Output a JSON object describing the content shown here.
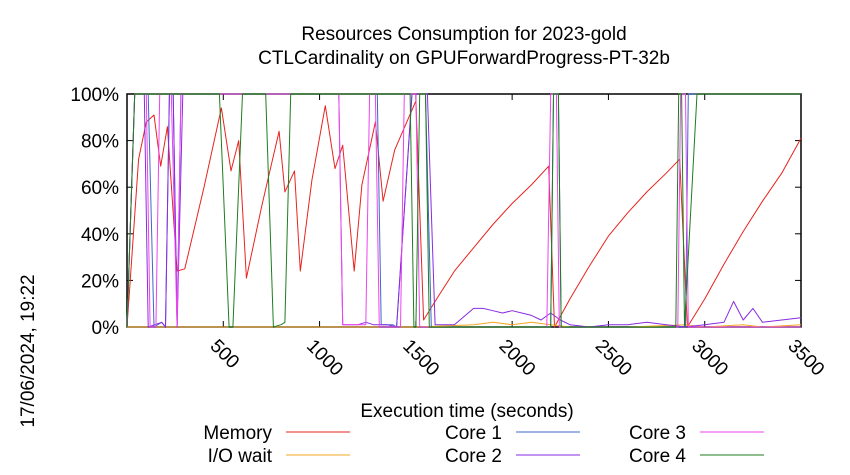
{
  "chart_data": {
    "type": "line",
    "title": "Resources Consumption for 2023-gold",
    "subtitle": "CTLCardinality on GPUForwardProgress-PT-32b",
    "xlabel": "Execution time (seconds)",
    "ylabel": "",
    "side_stamp": "17/06/2024, 19:22",
    "xlim": [
      0,
      3500
    ],
    "ylim": [
      0,
      100
    ],
    "x_ticks": [
      500,
      1000,
      1500,
      2000,
      2500,
      3000,
      3500
    ],
    "y_ticks": [
      {
        "v": 0,
        "label": "0%"
      },
      {
        "v": 20,
        "label": "20%"
      },
      {
        "v": 40,
        "label": "40%"
      },
      {
        "v": 60,
        "label": "60%"
      },
      {
        "v": 80,
        "label": "80%"
      },
      {
        "v": 100,
        "label": "100%"
      }
    ],
    "grid": false,
    "legend_position": "bottom",
    "series": [
      {
        "name": "Memory",
        "color": "#e8231e",
        "points": [
          [
            0,
            0
          ],
          [
            60,
            72
          ],
          [
            100,
            88
          ],
          [
            140,
            91
          ],
          [
            175,
            69
          ],
          [
            210,
            86
          ],
          [
            260,
            24
          ],
          [
            300,
            25
          ],
          [
            400,
            60
          ],
          [
            490,
            94
          ],
          [
            540,
            67
          ],
          [
            580,
            80
          ],
          [
            620,
            21
          ],
          [
            700,
            52
          ],
          [
            790,
            84
          ],
          [
            820,
            58
          ],
          [
            870,
            67
          ],
          [
            900,
            24
          ],
          [
            960,
            63
          ],
          [
            1030,
            95
          ],
          [
            1080,
            68
          ],
          [
            1120,
            78
          ],
          [
            1180,
            24
          ],
          [
            1220,
            61
          ],
          [
            1290,
            88
          ],
          [
            1330,
            54
          ],
          [
            1390,
            76
          ],
          [
            1500,
            97
          ],
          [
            1540,
            3
          ],
          [
            1600,
            11
          ],
          [
            1700,
            24
          ],
          [
            1800,
            34
          ],
          [
            1900,
            44
          ],
          [
            2000,
            53
          ],
          [
            2100,
            61
          ],
          [
            2190,
            69
          ],
          [
            2220,
            0
          ],
          [
            2300,
            12
          ],
          [
            2400,
            26
          ],
          [
            2500,
            39
          ],
          [
            2600,
            49
          ],
          [
            2700,
            58
          ],
          [
            2800,
            66
          ],
          [
            2870,
            72
          ],
          [
            2910,
            0
          ],
          [
            3000,
            12
          ],
          [
            3100,
            27
          ],
          [
            3200,
            41
          ],
          [
            3300,
            54
          ],
          [
            3400,
            66
          ],
          [
            3500,
            81
          ]
        ]
      },
      {
        "name": "I/O wait",
        "color": "#f5a623",
        "points": [
          [
            0,
            0
          ],
          [
            1500,
            0
          ],
          [
            1800,
            1
          ],
          [
            1900,
            2
          ],
          [
            2000,
            1
          ],
          [
            2100,
            2
          ],
          [
            2200,
            1
          ],
          [
            2300,
            0
          ],
          [
            2600,
            0
          ],
          [
            2900,
            1
          ],
          [
            3000,
            0
          ],
          [
            3200,
            1
          ],
          [
            3300,
            0
          ],
          [
            3500,
            1
          ]
        ]
      },
      {
        "name": "Core 1",
        "color": "#3d67c9",
        "points": [
          [
            0,
            0
          ],
          [
            40,
            100
          ],
          [
            110,
            100
          ],
          [
            140,
            0
          ],
          [
            180,
            2
          ],
          [
            200,
            0
          ],
          [
            220,
            100
          ],
          [
            240,
            100
          ],
          [
            260,
            0
          ],
          [
            280,
            100
          ],
          [
            1300,
            100
          ],
          [
            1320,
            1
          ],
          [
            1380,
            1
          ],
          [
            1400,
            0
          ],
          [
            1480,
            100
          ],
          [
            1550,
            100
          ],
          [
            1580,
            0
          ],
          [
            2200,
            0
          ],
          [
            2215,
            100
          ],
          [
            2240,
            100
          ],
          [
            2255,
            0
          ],
          [
            2900,
            0
          ],
          [
            2915,
            100
          ],
          [
            3500,
            100
          ]
        ]
      },
      {
        "name": "Core 2",
        "color": "#8a2be2",
        "points": [
          [
            0,
            0
          ],
          [
            40,
            100
          ],
          [
            90,
            100
          ],
          [
            110,
            0
          ],
          [
            180,
            2
          ],
          [
            200,
            0
          ],
          [
            220,
            100
          ],
          [
            240,
            100
          ],
          [
            260,
            0
          ],
          [
            290,
            100
          ],
          [
            1100,
            100
          ],
          [
            1120,
            1
          ],
          [
            1200,
            1
          ],
          [
            1240,
            2
          ],
          [
            1280,
            1
          ],
          [
            1350,
            1
          ],
          [
            1400,
            0
          ],
          [
            1480,
            100
          ],
          [
            1560,
            100
          ],
          [
            1600,
            1
          ],
          [
            1700,
            1
          ],
          [
            1800,
            8
          ],
          [
            1850,
            8
          ],
          [
            1900,
            7
          ],
          [
            1950,
            6
          ],
          [
            2000,
            7
          ],
          [
            2050,
            6
          ],
          [
            2100,
            5
          ],
          [
            2150,
            3
          ],
          [
            2200,
            6
          ],
          [
            2250,
            3
          ],
          [
            2300,
            1
          ],
          [
            2400,
            0
          ],
          [
            2500,
            1
          ],
          [
            2600,
            1
          ],
          [
            2700,
            2
          ],
          [
            2800,
            1
          ],
          [
            2900,
            0
          ],
          [
            3000,
            1
          ],
          [
            3100,
            2
          ],
          [
            3150,
            11
          ],
          [
            3200,
            3
          ],
          [
            3250,
            8
          ],
          [
            3300,
            2
          ],
          [
            3400,
            3
          ],
          [
            3500,
            4
          ]
        ]
      },
      {
        "name": "Core 3",
        "color": "#ee44ee",
        "points": [
          [
            0,
            0
          ],
          [
            40,
            100
          ],
          [
            100,
            100
          ],
          [
            120,
            0
          ],
          [
            150,
            0
          ],
          [
            170,
            100
          ],
          [
            230,
            100
          ],
          [
            260,
            0
          ],
          [
            280,
            100
          ],
          [
            1100,
            100
          ],
          [
            1120,
            1
          ],
          [
            1240,
            1
          ],
          [
            1260,
            100
          ],
          [
            1290,
            100
          ],
          [
            1310,
            0
          ],
          [
            1420,
            0
          ],
          [
            1440,
            100
          ],
          [
            1500,
            100
          ],
          [
            1520,
            0
          ],
          [
            2180,
            0
          ],
          [
            2200,
            100
          ],
          [
            2230,
            100
          ],
          [
            2245,
            0
          ],
          [
            2860,
            0
          ],
          [
            2875,
            100
          ],
          [
            2900,
            100
          ],
          [
            2915,
            0
          ],
          [
            3500,
            0
          ]
        ]
      },
      {
        "name": "Core 4",
        "color": "#1e7d1e",
        "points": [
          [
            0,
            0
          ],
          [
            40,
            100
          ],
          [
            480,
            100
          ],
          [
            530,
            0
          ],
          [
            550,
            0
          ],
          [
            600,
            100
          ],
          [
            720,
            100
          ],
          [
            760,
            0
          ],
          [
            800,
            1
          ],
          [
            820,
            2
          ],
          [
            850,
            100
          ],
          [
            1470,
            100
          ],
          [
            1490,
            0
          ],
          [
            1500,
            0
          ],
          [
            1520,
            100
          ],
          [
            1550,
            100
          ],
          [
            1570,
            0
          ],
          [
            2200,
            0
          ],
          [
            2215,
            100
          ],
          [
            2240,
            100
          ],
          [
            2255,
            0
          ],
          [
            2850,
            0
          ],
          [
            2865,
            100
          ],
          [
            2880,
            100
          ],
          [
            2895,
            0
          ],
          [
            2960,
            100
          ],
          [
            3500,
            100
          ]
        ]
      }
    ]
  }
}
